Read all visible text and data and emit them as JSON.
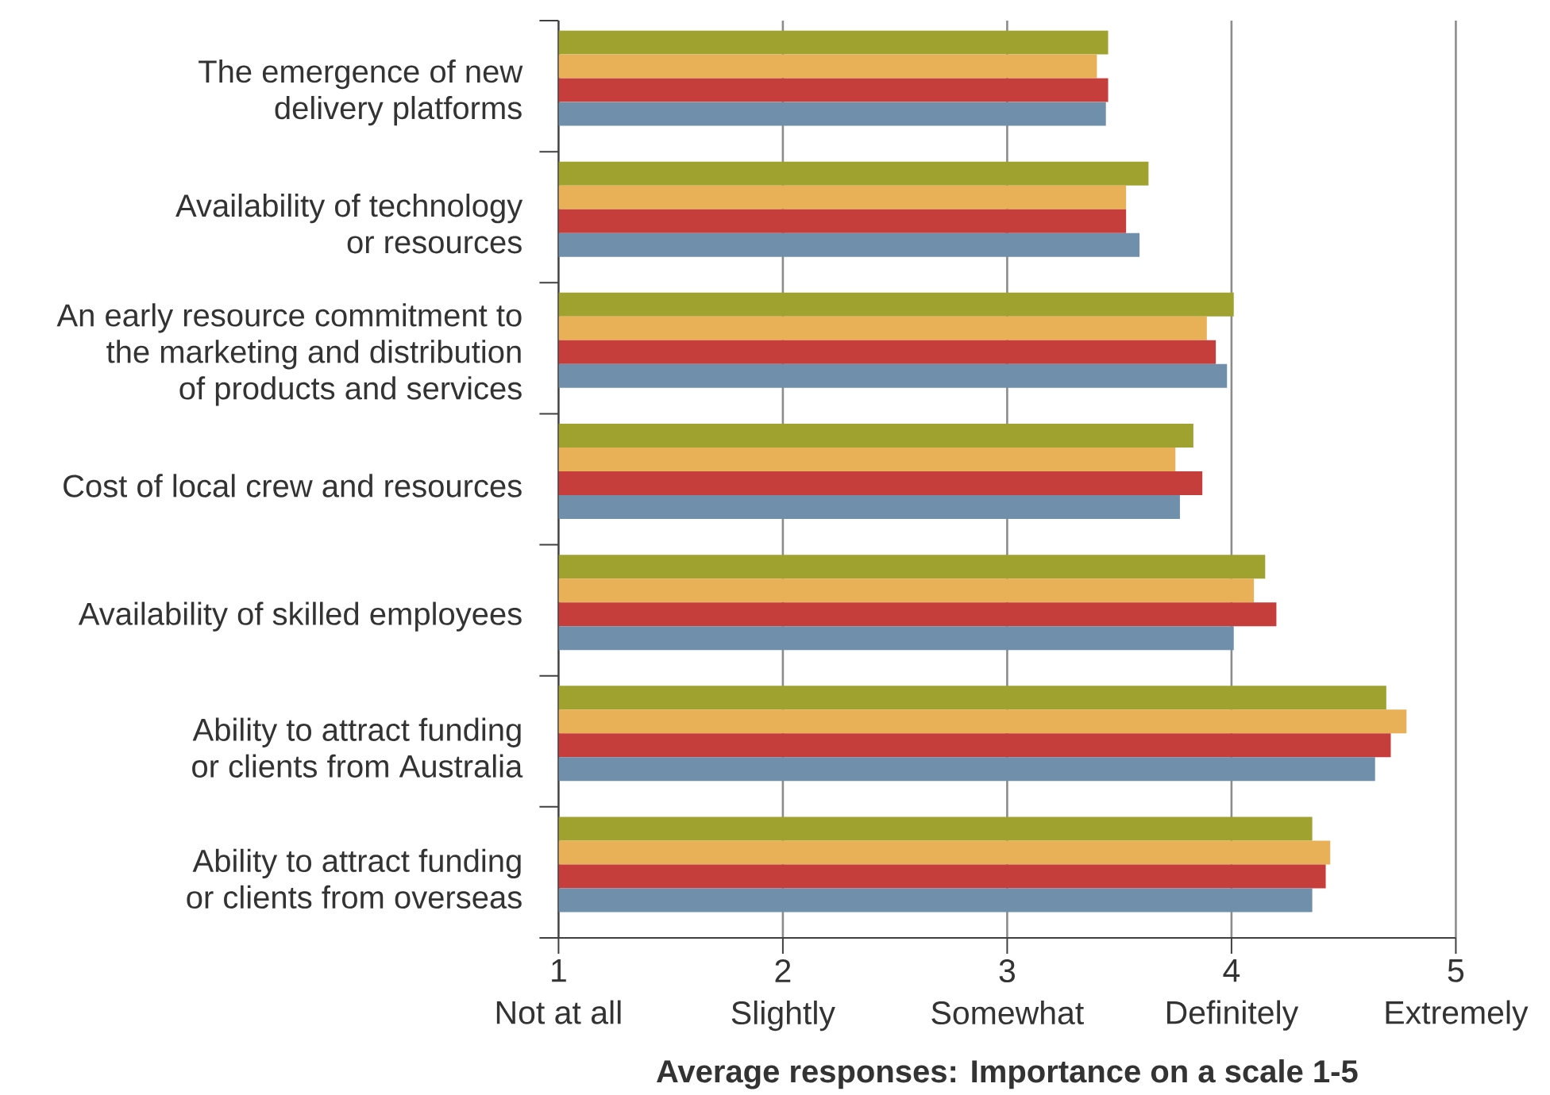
{
  "chart_data": {
    "type": "bar",
    "orientation": "horizontal",
    "xlabel": "Average responses: Importance on a scale 1-5",
    "categories": [
      "The emergence of new\ndelivery platforms",
      "Availability of technology\nor resources",
      "An early resource commitment to\nthe marketing and distribution\nof products and services",
      "Cost of local crew and resources",
      "Availability of skilled employees",
      "Ability to attract funding\nor clients from Australia",
      "Ability to attract funding\nor clients from overseas"
    ],
    "series": [
      {
        "color": "#a0a22f",
        "values": [
          3.45,
          3.63,
          4.01,
          3.83,
          4.15,
          4.69,
          4.36
        ]
      },
      {
        "color": "#e8b157",
        "values": [
          3.4,
          3.53,
          3.89,
          3.75,
          4.1,
          4.78,
          4.44
        ]
      },
      {
        "color": "#c53e3b",
        "values": [
          3.45,
          3.53,
          3.93,
          3.87,
          4.2,
          4.71,
          4.42
        ]
      },
      {
        "color": "#6f8fab",
        "values": [
          3.44,
          3.59,
          3.98,
          3.77,
          4.01,
          4.64,
          4.36
        ]
      }
    ],
    "xlim": [
      1,
      5
    ],
    "xticks": [
      {
        "value": 1,
        "label": "1\nNot at all"
      },
      {
        "value": 2,
        "label": "2\nSlightly"
      },
      {
        "value": 3,
        "label": "3\nSomewhat"
      },
      {
        "value": 4,
        "label": "4\nDefinitely"
      },
      {
        "value": 5,
        "label": "5\nExtremely"
      }
    ],
    "grid": "x"
  }
}
